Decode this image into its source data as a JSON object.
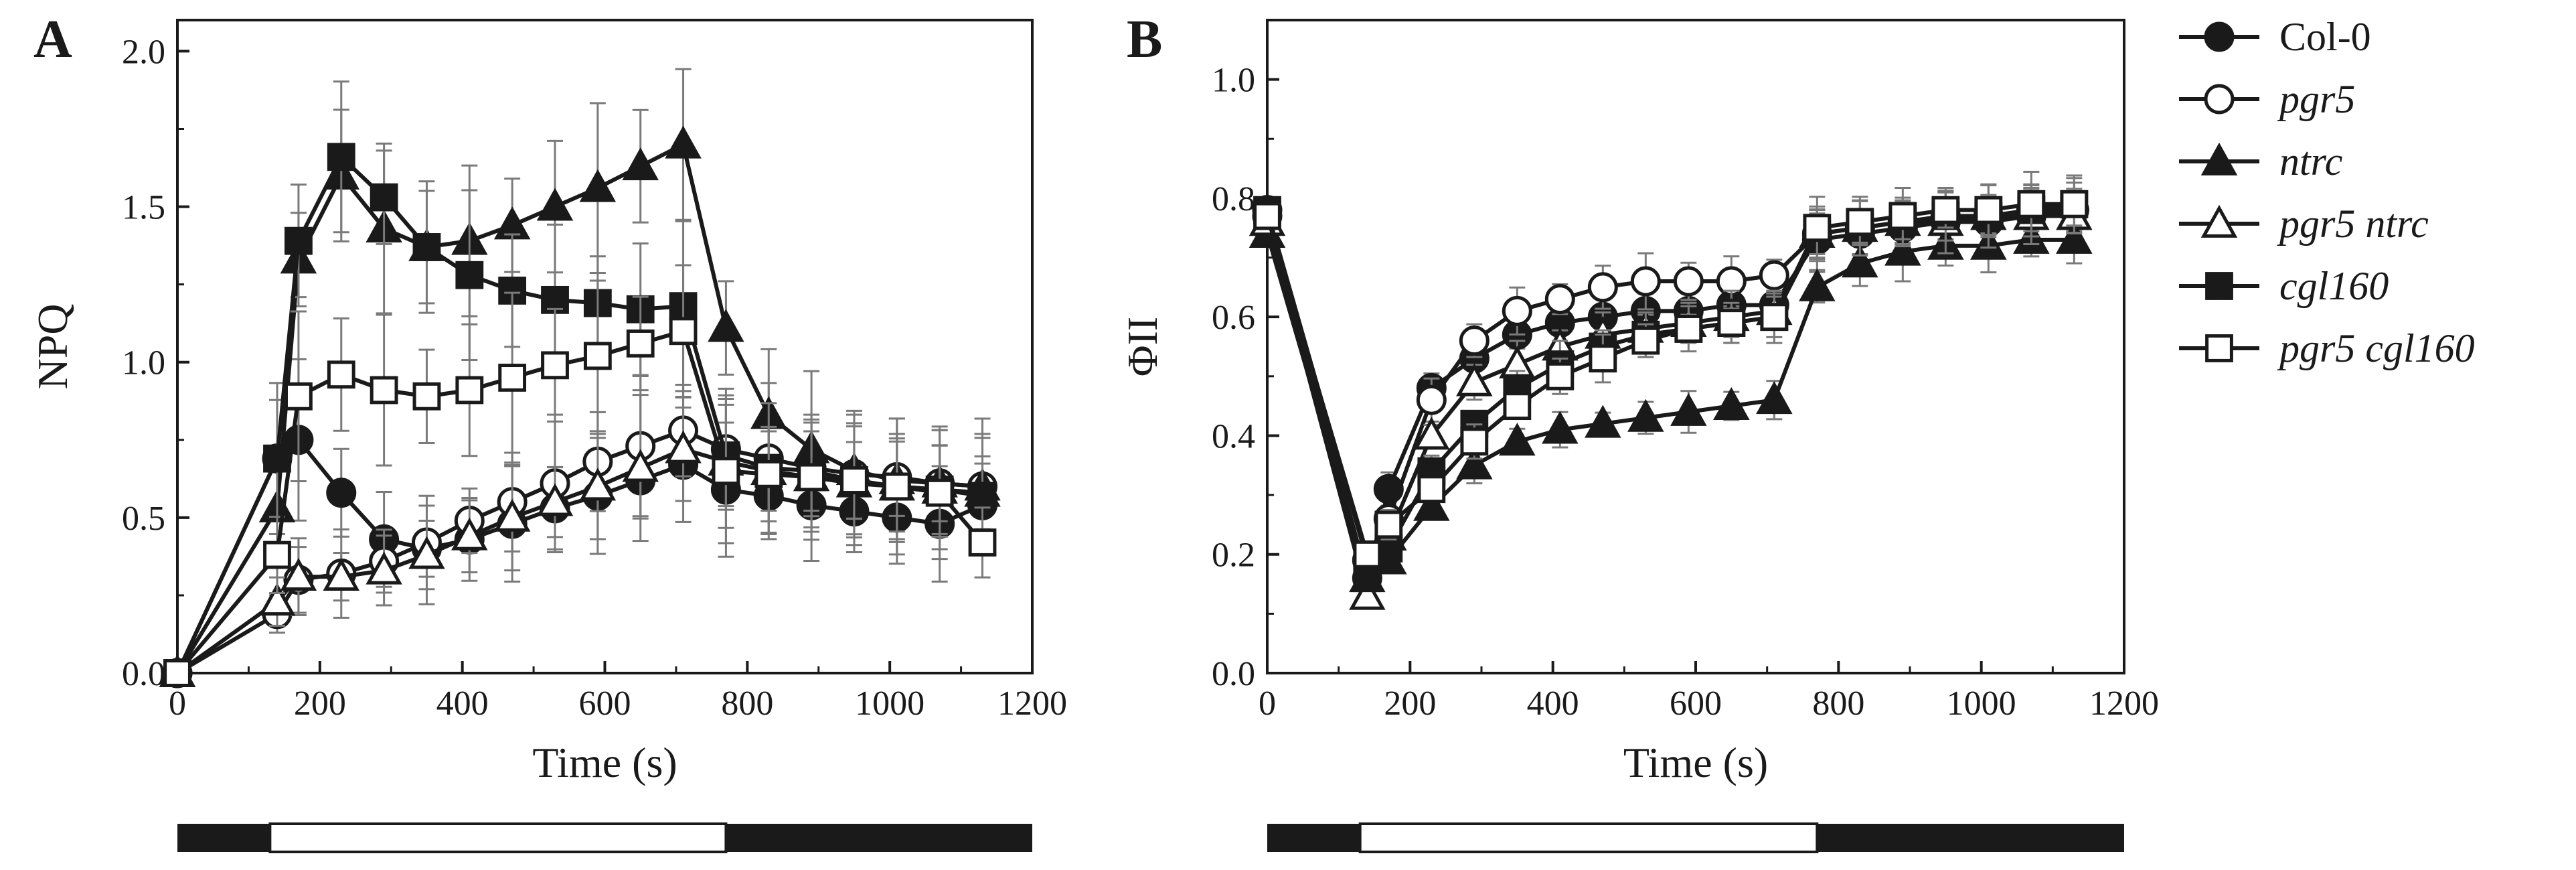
{
  "chart_data": [
    {
      "panel": "A",
      "type": "line",
      "xlabel": "Time (s)",
      "ylabel": "NPQ",
      "xlim": [
        0,
        1200
      ],
      "ylim": [
        0,
        2.1
      ],
      "xticks": [
        0,
        200,
        400,
        600,
        800,
        1000,
        1200
      ],
      "yticks": [
        0.0,
        0.5,
        1.0,
        1.5,
        2.0
      ],
      "xtick_labels": [
        "0",
        "200",
        "400",
        "600",
        "800",
        "1000",
        "1200"
      ],
      "ytick_labels": [
        "0.0",
        "0.5",
        "1.0",
        "1.5",
        "2.0"
      ],
      "light_bar": {
        "dark_until": 130,
        "light_until": 770,
        "end": 1200
      },
      "series": [
        {
          "name": "Col-0",
          "x": [
            0,
            140,
            170,
            230,
            290,
            350,
            410,
            470,
            530,
            590,
            650,
            710,
            770,
            830,
            890,
            950,
            1010,
            1070,
            1130
          ],
          "values": [
            0,
            0.69,
            0.75,
            0.58,
            0.43,
            0.4,
            0.43,
            0.48,
            0.53,
            0.57,
            0.62,
            0.67,
            0.59,
            0.57,
            0.54,
            0.52,
            0.5,
            0.48,
            0.54
          ]
        },
        {
          "name": "pgr5",
          "x": [
            0,
            140,
            170,
            230,
            290,
            350,
            410,
            470,
            530,
            590,
            650,
            710,
            770,
            830,
            890,
            950,
            1010,
            1070,
            1130
          ],
          "values": [
            0,
            0.19,
            0.3,
            0.32,
            0.36,
            0.42,
            0.49,
            0.55,
            0.61,
            0.68,
            0.73,
            0.78,
            0.72,
            0.69,
            0.66,
            0.64,
            0.63,
            0.61,
            0.6
          ]
        },
        {
          "name": "ntrc",
          "x": [
            0,
            140,
            170,
            230,
            290,
            350,
            410,
            470,
            530,
            590,
            650,
            710,
            770,
            830,
            890,
            950,
            1010,
            1070,
            1130
          ],
          "values": [
            0,
            0.53,
            1.33,
            1.6,
            1.43,
            1.37,
            1.39,
            1.44,
            1.5,
            1.56,
            1.63,
            1.7,
            1.11,
            0.83,
            0.72,
            0.65,
            0.62,
            0.61,
            0.6
          ]
        },
        {
          "name": "pgr5 ntrc",
          "x": [
            0,
            140,
            170,
            230,
            290,
            350,
            410,
            470,
            530,
            590,
            650,
            710,
            770,
            830,
            890,
            950,
            1010,
            1070,
            1130
          ],
          "values": [
            0,
            0.23,
            0.31,
            0.31,
            0.33,
            0.38,
            0.44,
            0.5,
            0.55,
            0.6,
            0.66,
            0.72,
            0.68,
            0.65,
            0.63,
            0.61,
            0.6,
            0.59,
            0.58
          ]
        },
        {
          "name": "cgl160",
          "x": [
            0,
            140,
            170,
            230,
            290,
            350,
            410,
            470,
            530,
            590,
            650,
            710,
            770,
            830,
            890,
            950,
            1010,
            1070,
            1130
          ],
          "values": [
            0,
            0.69,
            1.39,
            1.66,
            1.53,
            1.37,
            1.28,
            1.23,
            1.2,
            1.19,
            1.17,
            1.18,
            0.7,
            0.66,
            0.65,
            0.62,
            0.6,
            0.59,
            0.57
          ]
        },
        {
          "name": "pgr5 cgl160",
          "x": [
            0,
            140,
            170,
            230,
            290,
            350,
            410,
            470,
            530,
            590,
            650,
            710,
            770,
            830,
            890,
            950,
            1010,
            1070,
            1130
          ],
          "values": [
            0,
            0.38,
            0.89,
            0.96,
            0.91,
            0.89,
            0.91,
            0.95,
            0.99,
            1.02,
            1.06,
            1.1,
            0.65,
            0.64,
            0.63,
            0.62,
            0.6,
            0.58,
            0.42
          ]
        }
      ]
    },
    {
      "panel": "B",
      "type": "line",
      "xlabel": "Time (s)",
      "ylabel": "ΦII",
      "xlim": [
        0,
        1200
      ],
      "ylim": [
        0,
        1.1
      ],
      "xticks": [
        0,
        200,
        400,
        600,
        800,
        1000,
        1200
      ],
      "yticks": [
        0.0,
        0.2,
        0.4,
        0.6,
        0.8,
        1.0
      ],
      "xtick_labels": [
        "0",
        "200",
        "400",
        "600",
        "800",
        "1000",
        "1200"
      ],
      "ytick_labels": [
        "0.0",
        "0.2",
        "0.4",
        "0.6",
        "0.8",
        "1.0"
      ],
      "light_bar": {
        "dark_until": 130,
        "light_until": 770,
        "end": 1200
      },
      "series": [
        {
          "name": "Col-0",
          "x": [
            0,
            140,
            170,
            230,
            290,
            350,
            410,
            470,
            530,
            590,
            650,
            710,
            770,
            830,
            890,
            950,
            1010,
            1070,
            1130
          ],
          "values": [
            0.77,
            0.16,
            0.31,
            0.48,
            0.53,
            0.57,
            0.59,
            0.6,
            0.61,
            0.61,
            0.62,
            0.62,
            0.73,
            0.74,
            0.75,
            0.76,
            0.76,
            0.77,
            0.78
          ]
        },
        {
          "name": "pgr5",
          "x": [
            0,
            140,
            170,
            230,
            290,
            350,
            410,
            470,
            530,
            590,
            650,
            710,
            770,
            830,
            890,
            950,
            1010,
            1070,
            1130
          ],
          "values": [
            0.78,
            0.19,
            0.26,
            0.46,
            0.56,
            0.61,
            0.63,
            0.65,
            0.66,
            0.66,
            0.66,
            0.67,
            0.74,
            0.75,
            0.76,
            0.77,
            0.77,
            0.78,
            0.78
          ]
        },
        {
          "name": "ntrc",
          "x": [
            0,
            140,
            170,
            230,
            290,
            350,
            410,
            470,
            530,
            590,
            650,
            710,
            770,
            830,
            890,
            950,
            1010,
            1070,
            1130
          ],
          "values": [
            0.74,
            0.16,
            0.19,
            0.28,
            0.35,
            0.39,
            0.41,
            0.42,
            0.43,
            0.44,
            0.45,
            0.46,
            0.65,
            0.69,
            0.71,
            0.72,
            0.72,
            0.73,
            0.73
          ]
        },
        {
          "name": "pgr5 ntrc",
          "x": [
            0,
            140,
            170,
            230,
            290,
            350,
            410,
            470,
            530,
            590,
            650,
            710,
            770,
            830,
            890,
            950,
            1010,
            1070,
            1130
          ],
          "values": [
            0.76,
            0.13,
            0.23,
            0.4,
            0.49,
            0.52,
            0.55,
            0.57,
            0.58,
            0.59,
            0.6,
            0.61,
            0.74,
            0.75,
            0.76,
            0.76,
            0.77,
            0.77,
            0.77
          ]
        },
        {
          "name": "cgl160",
          "x": [
            0,
            140,
            170,
            230,
            290,
            350,
            410,
            470,
            530,
            590,
            650,
            710,
            770,
            830,
            890,
            950,
            1010,
            1070,
            1130
          ],
          "values": [
            0.78,
            0.16,
            0.21,
            0.34,
            0.42,
            0.48,
            0.52,
            0.55,
            0.57,
            0.58,
            0.59,
            0.6,
            0.74,
            0.75,
            0.76,
            0.77,
            0.77,
            0.78,
            0.79
          ]
        },
        {
          "name": "pgr5 cgl160",
          "x": [
            0,
            140,
            170,
            230,
            290,
            350,
            410,
            470,
            530,
            590,
            650,
            710,
            770,
            830,
            890,
            950,
            1010,
            1070,
            1130
          ],
          "values": [
            0.77,
            0.2,
            0.25,
            0.31,
            0.39,
            0.45,
            0.5,
            0.53,
            0.56,
            0.58,
            0.59,
            0.6,
            0.75,
            0.76,
            0.77,
            0.78,
            0.78,
            0.79,
            0.79
          ]
        }
      ]
    }
  ],
  "panels": {
    "a": "A",
    "b": "B"
  },
  "legend": {
    "entries": [
      {
        "name": "Col-0",
        "marker": "circle",
        "fill": "black",
        "italic": false
      },
      {
        "name": "pgr5",
        "marker": "circle",
        "fill": "white",
        "italic": true
      },
      {
        "name": "ntrc",
        "marker": "triangle",
        "fill": "black",
        "italic": true
      },
      {
        "name": "pgr5 ntrc",
        "marker": "triangle",
        "fill": "white",
        "italic": true
      },
      {
        "name": "cgl160",
        "marker": "square",
        "fill": "black",
        "italic": true
      },
      {
        "name": "pgr5 cgl160",
        "marker": "square",
        "fill": "white",
        "italic": true
      }
    ]
  },
  "colors": {
    "ink": "#1a1a1a",
    "error_bar": "#7a7a7a",
    "background": "#ffffff"
  }
}
